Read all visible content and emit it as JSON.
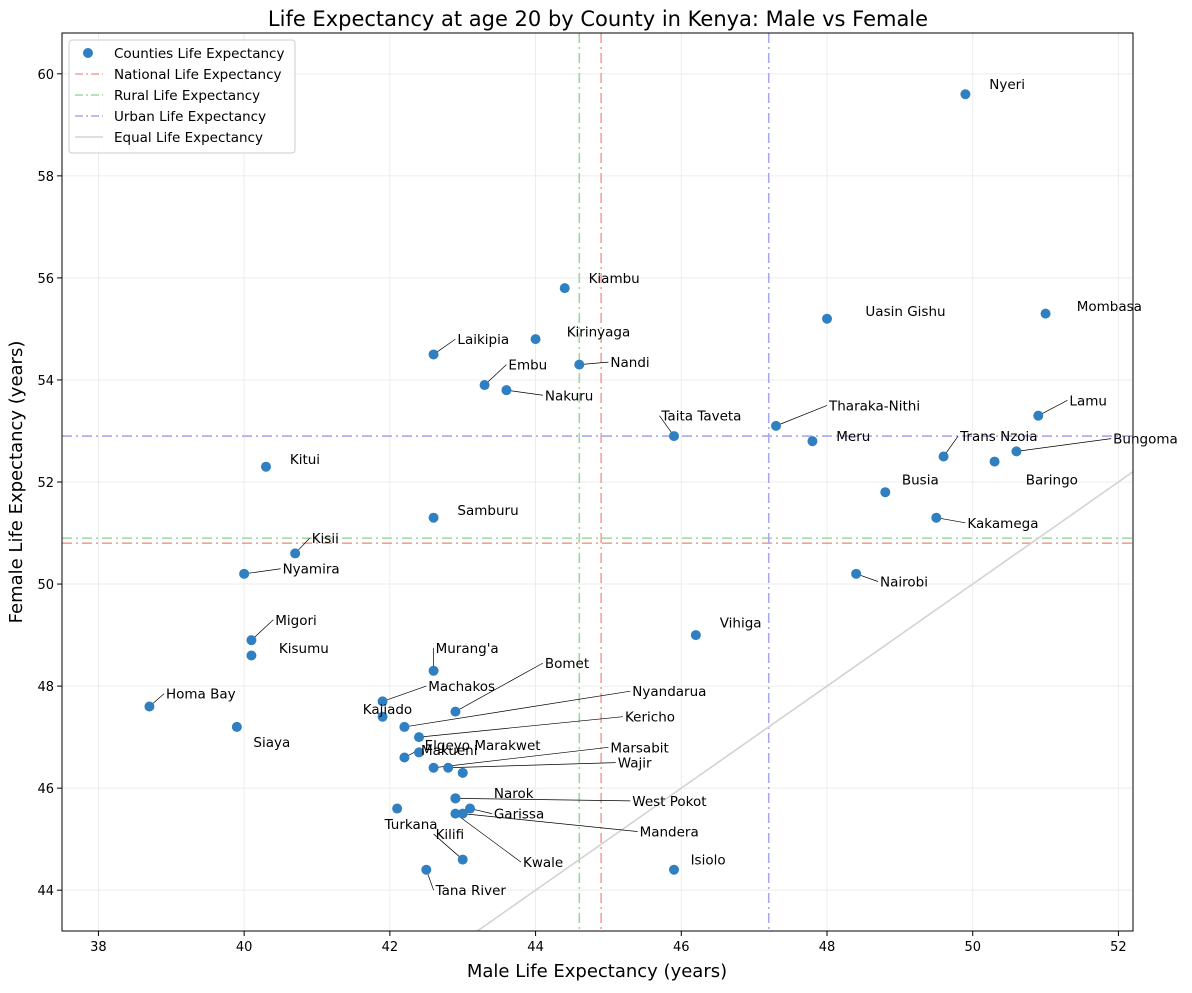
{
  "chart_data": {
    "type": "scatter",
    "title": "Life Expectancy at age 20 by County in Kenya: Male vs Female",
    "xlabel": "Male Life Expectancy (years)",
    "ylabel": "Female Life Expectancy (years)",
    "xlim": [
      37.5,
      52.2
    ],
    "ylim": [
      43.2,
      60.8
    ],
    "xticks": [
      38,
      40,
      42,
      44,
      46,
      48,
      50,
      52
    ],
    "yticks": [
      44,
      46,
      48,
      50,
      52,
      54,
      56,
      58,
      60
    ],
    "grid": true,
    "legend_position": "top-left",
    "colors": {
      "points": "#2f7fc1",
      "national": "#f4a09a",
      "rural": "#9fd79f",
      "urban": "#a8a8f0",
      "equal": "#d3d3d3",
      "grid": "#ececec",
      "axis": "#000000"
    },
    "legend": [
      {
        "label": "Counties Life Expectancy",
        "kind": "point",
        "color": "#2f7fc1"
      },
      {
        "label": "National Life Expectancy",
        "kind": "dashdot",
        "color": "#f4a09a"
      },
      {
        "label": "Rural Life Expectancy",
        "kind": "dashdot",
        "color": "#9fd79f"
      },
      {
        "label": "Urban Life Expectancy",
        "kind": "dashdot",
        "color": "#a8a8f0"
      },
      {
        "label": "Equal Life Expectancy",
        "kind": "solid",
        "color": "#d3d3d3"
      }
    ],
    "reference_lines": {
      "national": {
        "male": 44.9,
        "female": 50.8
      },
      "rural": {
        "male": 44.6,
        "female": 50.9
      },
      "urban": {
        "male": 47.2,
        "female": 52.9
      }
    },
    "points": [
      {
        "name": "Nyeri",
        "x": 49.9,
        "y": 59.6,
        "lx": 50.2,
        "ly": 59.8,
        "leader": false
      },
      {
        "name": "Kiambu",
        "x": 44.4,
        "y": 55.8,
        "lx": 44.7,
        "ly": 56.0,
        "leader": false
      },
      {
        "name": "Uasin Gishu",
        "x": 48.0,
        "y": 55.2,
        "lx": 48.5,
        "ly": 55.35,
        "leader": false
      },
      {
        "name": "Mombasa",
        "x": 51.0,
        "y": 55.3,
        "lx": 51.4,
        "ly": 55.45,
        "leader": false
      },
      {
        "name": "Kirinyaga",
        "x": 44.0,
        "y": 54.8,
        "lx": 44.4,
        "ly": 54.95,
        "leader": false
      },
      {
        "name": "Laikipia",
        "x": 42.6,
        "y": 54.5,
        "lx": 42.9,
        "ly": 54.8,
        "leader": true
      },
      {
        "name": "Nandi",
        "x": 44.6,
        "y": 54.3,
        "lx": 45.0,
        "ly": 54.35,
        "leader": true
      },
      {
        "name": "Embu",
        "x": 43.3,
        "y": 53.9,
        "lx": 43.6,
        "ly": 54.3,
        "leader": true
      },
      {
        "name": "Nakuru",
        "x": 43.6,
        "y": 53.8,
        "lx": 44.1,
        "ly": 53.7,
        "leader": true
      },
      {
        "name": "Lamu",
        "x": 50.9,
        "y": 53.3,
        "lx": 51.3,
        "ly": 53.6,
        "leader": true
      },
      {
        "name": "Taita Taveta",
        "x": 45.9,
        "y": 52.9,
        "lx": 45.7,
        "ly": 53.3,
        "leader": true
      },
      {
        "name": "Tharaka-Nithi",
        "x": 47.3,
        "y": 53.1,
        "lx": 48.0,
        "ly": 53.5,
        "leader": true
      },
      {
        "name": "Meru",
        "x": 47.8,
        "y": 52.8,
        "lx": 48.1,
        "ly": 52.9,
        "leader": false
      },
      {
        "name": "Trans Nzoia",
        "x": 49.6,
        "y": 52.5,
        "lx": 49.8,
        "ly": 52.9,
        "leader": true
      },
      {
        "name": "Bungoma",
        "x": 50.6,
        "y": 52.6,
        "lx": 51.9,
        "ly": 52.85,
        "leader": true
      },
      {
        "name": "Baringo",
        "x": 50.3,
        "y": 52.4,
        "lx": 50.7,
        "ly": 52.05,
        "leader": false
      },
      {
        "name": "Kitui",
        "x": 40.3,
        "y": 52.3,
        "lx": 40.6,
        "ly": 52.45,
        "leader": false
      },
      {
        "name": "Busia",
        "x": 48.8,
        "y": 51.8,
        "lx": 49.0,
        "ly": 52.05,
        "leader": false
      },
      {
        "name": "Samburu",
        "x": 42.6,
        "y": 51.3,
        "lx": 42.9,
        "ly": 51.45,
        "leader": false
      },
      {
        "name": "Kakamega",
        "x": 49.5,
        "y": 51.3,
        "lx": 49.9,
        "ly": 51.2,
        "leader": true
      },
      {
        "name": "Kisii",
        "x": 40.7,
        "y": 50.6,
        "lx": 40.9,
        "ly": 50.9,
        "leader": true
      },
      {
        "name": "Nyamira",
        "x": 40.0,
        "y": 50.2,
        "lx": 40.5,
        "ly": 50.3,
        "leader": true
      },
      {
        "name": "Nairobi",
        "x": 48.4,
        "y": 50.2,
        "lx": 48.7,
        "ly": 50.05,
        "leader": true
      },
      {
        "name": "Vihiga",
        "x": 46.2,
        "y": 49.0,
        "lx": 46.5,
        "ly": 49.25,
        "leader": false
      },
      {
        "name": "Migori",
        "x": 40.1,
        "y": 48.9,
        "lx": 40.4,
        "ly": 49.3,
        "leader": true
      },
      {
        "name": "Kisumu",
        "x": 40.1,
        "y": 48.6,
        "lx": 40.45,
        "ly": 48.75,
        "leader": false
      },
      {
        "name": "Murang'a",
        "x": 42.6,
        "y": 48.3,
        "lx": 42.6,
        "ly": 48.75,
        "leader": true
      },
      {
        "name": "Homa Bay",
        "x": 38.7,
        "y": 47.6,
        "lx": 38.9,
        "ly": 47.85,
        "leader": true
      },
      {
        "name": "Bomet",
        "x": 42.9,
        "y": 47.5,
        "lx": 44.1,
        "ly": 48.45,
        "leader": true
      },
      {
        "name": "Machakos",
        "x": 41.9,
        "y": 47.7,
        "lx": 42.5,
        "ly": 48.0,
        "leader": true
      },
      {
        "name": "Nyandarua",
        "x": 42.2,
        "y": 47.2,
        "lx": 45.3,
        "ly": 47.9,
        "leader": true
      },
      {
        "name": "Kajiado",
        "x": 41.9,
        "y": 47.4,
        "lx": 41.6,
        "ly": 47.55,
        "leader": false
      },
      {
        "name": "Siaya",
        "x": 39.9,
        "y": 47.2,
        "lx": 40.1,
        "ly": 46.9,
        "leader": false
      },
      {
        "name": "Kericho",
        "x": 42.4,
        "y": 47.0,
        "lx": 45.2,
        "ly": 47.4,
        "leader": true
      },
      {
        "name": "Elgeyo Marakwet",
        "x": 42.4,
        "y": 46.7,
        "lx": 42.45,
        "ly": 46.85,
        "leader": false
      },
      {
        "name": "Makueni",
        "x": 42.2,
        "y": 46.6,
        "lx": 42.4,
        "ly": 46.75,
        "leader": true
      },
      {
        "name": "Marsabit",
        "x": 42.6,
        "y": 46.4,
        "lx": 45.0,
        "ly": 46.8,
        "leader": true
      },
      {
        "name": "Wajir",
        "x": 42.8,
        "y": 46.4,
        "lx": 45.1,
        "ly": 46.5,
        "leader": true
      },
      {
        "name": "Mandera",
        "x": 43.0,
        "y": 46.3,
        "lx": 0,
        "ly": 0,
        "leader": false,
        "nolabel": true
      },
      {
        "name": "Narok",
        "x": 42.9,
        "y": 45.8,
        "lx": 43.4,
        "ly": 45.9,
        "leader": false
      },
      {
        "name": "West Pokot",
        "x": 42.9,
        "y": 45.8,
        "lx": 45.3,
        "ly": 45.75,
        "leader": true
      },
      {
        "name": "Garissa",
        "x": 43.1,
        "y": 45.6,
        "lx": 43.4,
        "ly": 45.5,
        "leader": true
      },
      {
        "name": "Mandera",
        "x": 43.0,
        "y": 45.5,
        "lx": 45.4,
        "ly": 45.15,
        "leader": true
      },
      {
        "name": "Turkana",
        "x": 42.1,
        "y": 45.6,
        "lx": 41.9,
        "ly": 45.3,
        "leader": false
      },
      {
        "name": "Kilifi",
        "x": 43.0,
        "y": 44.6,
        "lx": 42.6,
        "ly": 45.1,
        "leader": true
      },
      {
        "name": "Kwale",
        "x": 42.9,
        "y": 45.5,
        "lx": 43.8,
        "ly": 44.55,
        "leader": true
      },
      {
        "name": "Isiolo",
        "x": 45.9,
        "y": 44.4,
        "lx": 46.1,
        "ly": 44.6,
        "leader": false
      },
      {
        "name": "Tana River",
        "x": 42.5,
        "y": 44.4,
        "lx": 42.6,
        "ly": 44.0,
        "leader": true
      }
    ]
  }
}
